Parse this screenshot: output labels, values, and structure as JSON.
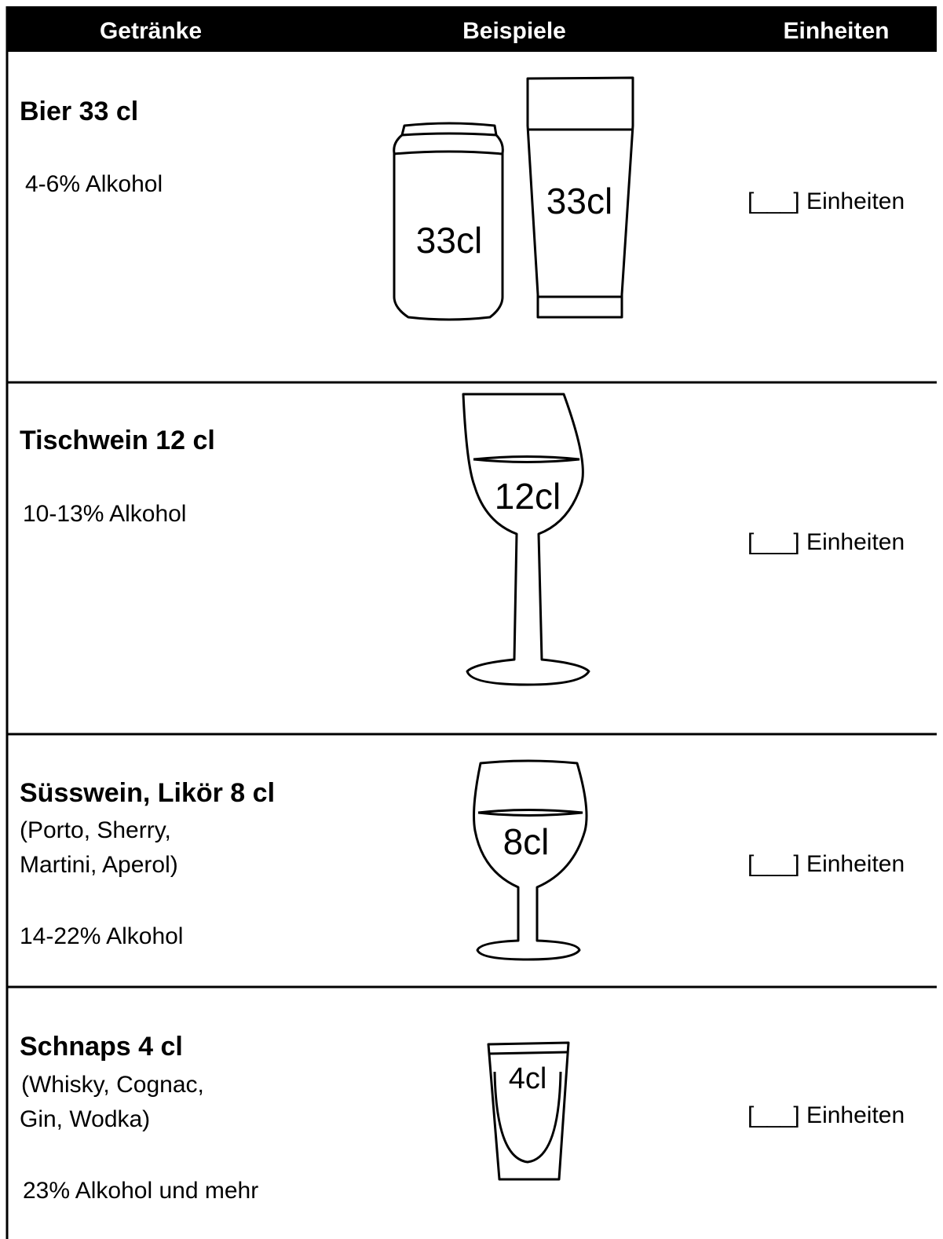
{
  "table": {
    "header": [
      "Getränke",
      "Beispiele",
      "Einheiten"
    ],
    "rows": [
      {
        "name": "Bier 33 cl",
        "details": [],
        "alcohol": "4-6% Alkohol",
        "examples": [
          "33cl",
          "33cl"
        ],
        "units": "[___] Einheiten"
      },
      {
        "name": "Tischwein 12 cl",
        "details": [],
        "alcohol": "10-13% Alkohol",
        "examples": [
          "12cl"
        ],
        "units": "[___] Einheiten"
      },
      {
        "name": "Süsswein, Likör 8 cl",
        "details": [
          "(Porto, Sherry,",
          "Martini, Aperol)"
        ],
        "alcohol": "14-22% Alkohol",
        "examples": [
          "8cl"
        ],
        "units": "[___] Einheiten"
      },
      {
        "name": "Schnaps 4 cl",
        "details": [
          "(Whisky, Cognac,",
          "Gin, Wodka)"
        ],
        "alcohol": "23% Alkohol und mehr",
        "examples": [
          "4cl"
        ],
        "units": "[___] Einheiten"
      }
    ]
  }
}
